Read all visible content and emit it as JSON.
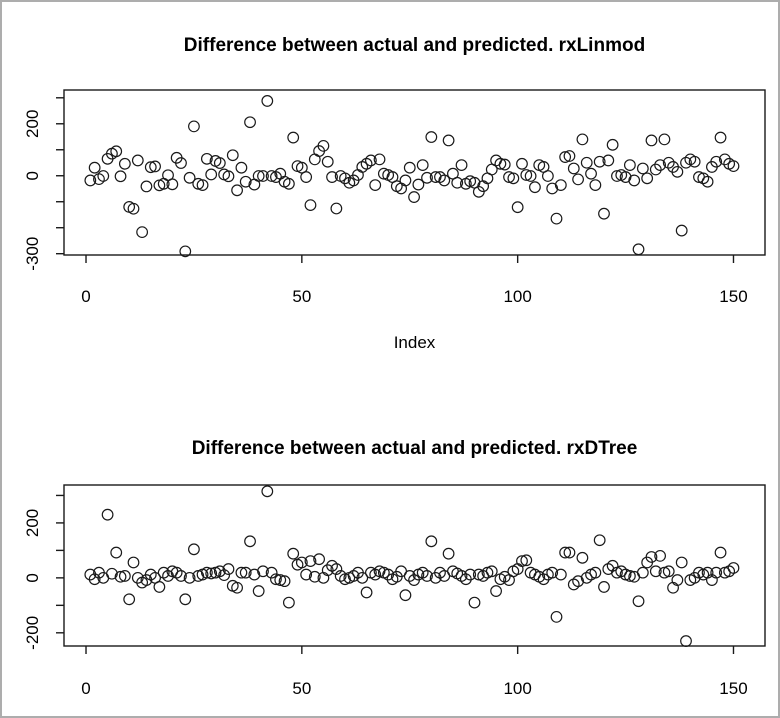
{
  "window": {
    "background": "#ffffff",
    "border_color": "#adadad",
    "line_color": "#1a1a1a"
  },
  "chart_data": [
    {
      "type": "scatter",
      "title": "Difference between actual and predicted. rxLinmod",
      "xlabel": "Index",
      "ylabel": "",
      "marker": "open-circle",
      "grid": "off",
      "x_description": "Index 1..150, one point per index",
      "x_tick_values": [
        0,
        50,
        100,
        150
      ],
      "x_ticks": [
        "0",
        "50",
        "100",
        "150"
      ],
      "y_tick_values": [
        -300,
        -200,
        -100,
        0,
        100,
        200,
        300
      ],
      "y_tick_labels": [
        {
          "value": 200,
          "label": "200"
        },
        {
          "value": 0,
          "label": "0"
        },
        {
          "value": -300,
          "label": "-300"
        }
      ],
      "xlim": [
        -5.1,
        157.3
      ],
      "ylim": [
        -305,
        330
      ],
      "values": [
        -18,
        31,
        -13,
        -1,
        65,
        85,
        94,
        -2,
        46,
        -120,
        -127,
        59,
        -217,
        -41,
        33,
        36,
        -37,
        -31,
        2,
        -33,
        69,
        49,
        -291,
        -8,
        190,
        -31,
        -36,
        65,
        5,
        57,
        49,
        5,
        -2,
        79,
        -56,
        31,
        -23,
        206,
        -34,
        -1,
        -1,
        288,
        -1,
        -5,
        8,
        -23,
        -31,
        147,
        37,
        31,
        -5,
        -113,
        63,
        95,
        115,
        54,
        -5,
        -126,
        -1,
        -10,
        -27,
        -18,
        3,
        34,
        46,
        59,
        -36,
        63,
        8,
        3,
        -5,
        -40,
        -49,
        -18,
        31,
        -82,
        -34,
        41,
        -8,
        149,
        -5,
        -5,
        -18,
        136,
        8,
        -27,
        41,
        -31,
        -21,
        -27,
        -62,
        -40,
        -10,
        24,
        59,
        46,
        43,
        -5,
        -10,
        -121,
        46,
        3,
        -1,
        -44,
        41,
        34,
        -1,
        -49,
        -165,
        -36,
        72,
        76,
        28,
        -14,
        140,
        50,
        8,
        -36,
        54,
        -146,
        59,
        119,
        -1,
        3,
        -5,
        41,
        -18,
        -283,
        28,
        -10,
        136,
        24,
        41,
        140,
        50,
        34,
        15,
        -211,
        50,
        63,
        54,
        -5,
        -10,
        -23,
        34,
        54,
        147,
        63,
        46,
        37
      ]
    },
    {
      "type": "scatter",
      "title": "Difference between actual and predicted. rxDTree",
      "xlabel": "",
      "ylabel": "",
      "marker": "open-circle",
      "grid": "off",
      "x_description": "Index 1..150, one point per index",
      "x_tick_values": [
        0,
        50,
        100,
        150
      ],
      "x_ticks": [
        "0",
        "50",
        "100",
        "150"
      ],
      "y_tick_values": [
        -200,
        -100,
        0,
        100,
        200,
        300
      ],
      "y_tick_labels": [
        {
          "value": 200,
          "label": "200"
        },
        {
          "value": 0,
          "label": "0"
        },
        {
          "value": -200,
          "label": "-200"
        }
      ],
      "xlim": [
        -5.1,
        157.3
      ],
      "ylim": [
        -248,
        338
      ],
      "values": [
        12,
        -5,
        19,
        0,
        230,
        15,
        92,
        4,
        7,
        -78,
        56,
        0,
        -17,
        -8,
        12,
        0,
        -33,
        19,
        7,
        24,
        19,
        7,
        -78,
        0,
        104,
        7,
        12,
        19,
        16,
        19,
        24,
        10,
        32,
        -29,
        -36,
        19,
        19,
        133,
        12,
        -48,
        24,
        315,
        19,
        -5,
        -8,
        -12,
        -90,
        88,
        48,
        56,
        12,
        61,
        4,
        68,
        0,
        28,
        44,
        32,
        7,
        -5,
        0,
        7,
        19,
        0,
        -53,
        19,
        12,
        24,
        19,
        12,
        -5,
        4,
        24,
        -63,
        7,
        -8,
        12,
        19,
        7,
        133,
        0,
        19,
        7,
        88,
        24,
        16,
        7,
        -5,
        12,
        -90,
        12,
        7,
        19,
        24,
        -48,
        -5,
        4,
        -8,
        24,
        32,
        61,
        64,
        19,
        12,
        4,
        -5,
        12,
        19,
        -142,
        12,
        92,
        92,
        -24,
        -12,
        73,
        0,
        12,
        19,
        137,
        -33,
        32,
        44,
        19,
        24,
        12,
        7,
        4,
        -85,
        19,
        56,
        76,
        24,
        80,
        19,
        24,
        -36,
        -8,
        56,
        -230,
        -8,
        0,
        19,
        12,
        19,
        -8,
        19,
        92,
        19,
        24,
        36
      ]
    }
  ]
}
